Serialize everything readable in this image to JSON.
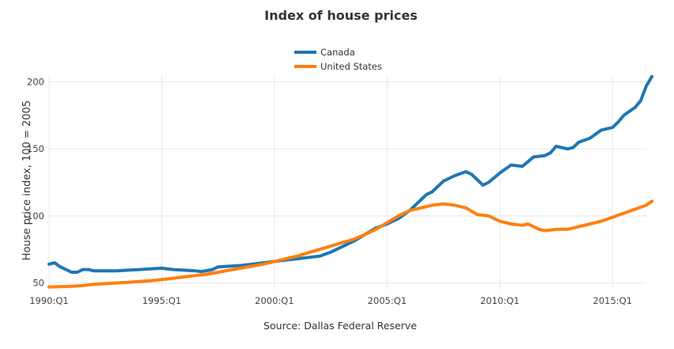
{
  "chart_data": {
    "type": "line",
    "title": "Index of house prices",
    "xlabel": "Source: Dallas Federal Reserve",
    "ylabel": "House price index, 100 = 2005",
    "ylim": [
      45,
      205
    ],
    "x_range": [
      1990.0,
      2016.5
    ],
    "x_ticks": [
      {
        "value": 1990,
        "label": "1990:Q1"
      },
      {
        "value": 1995,
        "label": "1995:Q1"
      },
      {
        "value": 2000,
        "label": "2000:Q1"
      },
      {
        "value": 2005,
        "label": "2005:Q1"
      },
      {
        "value": 2010,
        "label": "2010:Q1"
      },
      {
        "value": 2015,
        "label": "2015:Q1"
      }
    ],
    "y_ticks": [
      {
        "value": 50,
        "label": "50"
      },
      {
        "value": 100,
        "label": "100"
      },
      {
        "value": 150,
        "label": "150"
      },
      {
        "value": 200,
        "label": "200"
      }
    ],
    "grid": true,
    "legend_position": "top-center",
    "series": [
      {
        "name": "Canada",
        "color": "#1f77b4",
        "points": [
          [
            1990.0,
            64
          ],
          [
            1990.25,
            65
          ],
          [
            1990.5,
            62
          ],
          [
            1990.75,
            60
          ],
          [
            1991.0,
            58
          ],
          [
            1991.25,
            58
          ],
          [
            1991.5,
            60
          ],
          [
            1991.75,
            60
          ],
          [
            1992.0,
            59
          ],
          [
            1992.5,
            59
          ],
          [
            1993.0,
            59
          ],
          [
            1993.5,
            59.5
          ],
          [
            1994.0,
            60
          ],
          [
            1994.5,
            60.5
          ],
          [
            1995.0,
            61
          ],
          [
            1995.5,
            60
          ],
          [
            1996.0,
            59.5
          ],
          [
            1996.5,
            59
          ],
          [
            1996.75,
            58.5
          ],
          [
            1997.25,
            60
          ],
          [
            1997.5,
            62
          ],
          [
            1998.0,
            62.5
          ],
          [
            1998.5,
            63
          ],
          [
            1999.0,
            64
          ],
          [
            1999.5,
            65
          ],
          [
            2000.0,
            66
          ],
          [
            2000.5,
            67
          ],
          [
            2001.0,
            68
          ],
          [
            2001.5,
            69
          ],
          [
            2002.0,
            70
          ],
          [
            2002.5,
            73
          ],
          [
            2003.0,
            77
          ],
          [
            2003.5,
            81
          ],
          [
            2004.0,
            86
          ],
          [
            2004.5,
            91
          ],
          [
            2005.0,
            94
          ],
          [
            2005.5,
            98
          ],
          [
            2006.0,
            104
          ],
          [
            2006.5,
            112
          ],
          [
            2006.75,
            116
          ],
          [
            2007.0,
            118
          ],
          [
            2007.5,
            126
          ],
          [
            2008.0,
            130
          ],
          [
            2008.5,
            133
          ],
          [
            2008.75,
            131
          ],
          [
            2009.0,
            127
          ],
          [
            2009.25,
            123
          ],
          [
            2009.5,
            125
          ],
          [
            2010.0,
            132
          ],
          [
            2010.5,
            138
          ],
          [
            2011.0,
            137
          ],
          [
            2011.5,
            144
          ],
          [
            2012.0,
            145
          ],
          [
            2012.25,
            147
          ],
          [
            2012.5,
            152
          ],
          [
            2013.0,
            150
          ],
          [
            2013.25,
            151
          ],
          [
            2013.5,
            155
          ],
          [
            2014.0,
            158
          ],
          [
            2014.5,
            164
          ],
          [
            2015.0,
            166
          ],
          [
            2015.25,
            170
          ],
          [
            2015.5,
            175
          ],
          [
            2016.0,
            181
          ],
          [
            2016.25,
            186
          ],
          [
            2016.5,
            197
          ],
          [
            2016.75,
            204
          ]
        ]
      },
      {
        "name": "United States",
        "color": "#ff7f0e",
        "points": [
          [
            1990.0,
            47
          ],
          [
            1990.5,
            47.2
          ],
          [
            1991.0,
            47.5
          ],
          [
            1991.5,
            48
          ],
          [
            1992.0,
            49
          ],
          [
            1992.5,
            49.5
          ],
          [
            1993.0,
            50
          ],
          [
            1993.5,
            50.5
          ],
          [
            1994.0,
            51
          ],
          [
            1994.5,
            51.7
          ],
          [
            1995.0,
            52.5
          ],
          [
            1995.5,
            53.5
          ],
          [
            1996.0,
            54.5
          ],
          [
            1996.5,
            55.5
          ],
          [
            1997.0,
            56.5
          ],
          [
            1997.5,
            58
          ],
          [
            1998.0,
            59.5
          ],
          [
            1998.5,
            61
          ],
          [
            1999.0,
            62.5
          ],
          [
            1999.5,
            64
          ],
          [
            2000.0,
            66
          ],
          [
            2000.5,
            68
          ],
          [
            2001.0,
            70
          ],
          [
            2001.5,
            72.5
          ],
          [
            2002.0,
            75
          ],
          [
            2002.5,
            77.5
          ],
          [
            2003.0,
            80
          ],
          [
            2003.5,
            82.5
          ],
          [
            2004.0,
            86
          ],
          [
            2004.5,
            90
          ],
          [
            2005.0,
            95
          ],
          [
            2005.5,
            100
          ],
          [
            2006.0,
            104
          ],
          [
            2006.5,
            106
          ],
          [
            2007.0,
            108
          ],
          [
            2007.5,
            109
          ],
          [
            2008.0,
            108
          ],
          [
            2008.5,
            106
          ],
          [
            2009.0,
            101
          ],
          [
            2009.5,
            100
          ],
          [
            2010.0,
            96
          ],
          [
            2010.5,
            94
          ],
          [
            2011.0,
            93
          ],
          [
            2011.25,
            94
          ],
          [
            2011.5,
            92
          ],
          [
            2011.75,
            90
          ],
          [
            2012.0,
            89
          ],
          [
            2012.5,
            90
          ],
          [
            2013.0,
            90
          ],
          [
            2013.5,
            92
          ],
          [
            2014.0,
            94
          ],
          [
            2014.5,
            96
          ],
          [
            2015.0,
            99
          ],
          [
            2015.5,
            102
          ],
          [
            2016.0,
            105
          ],
          [
            2016.5,
            108
          ],
          [
            2016.75,
            111
          ]
        ]
      }
    ]
  }
}
